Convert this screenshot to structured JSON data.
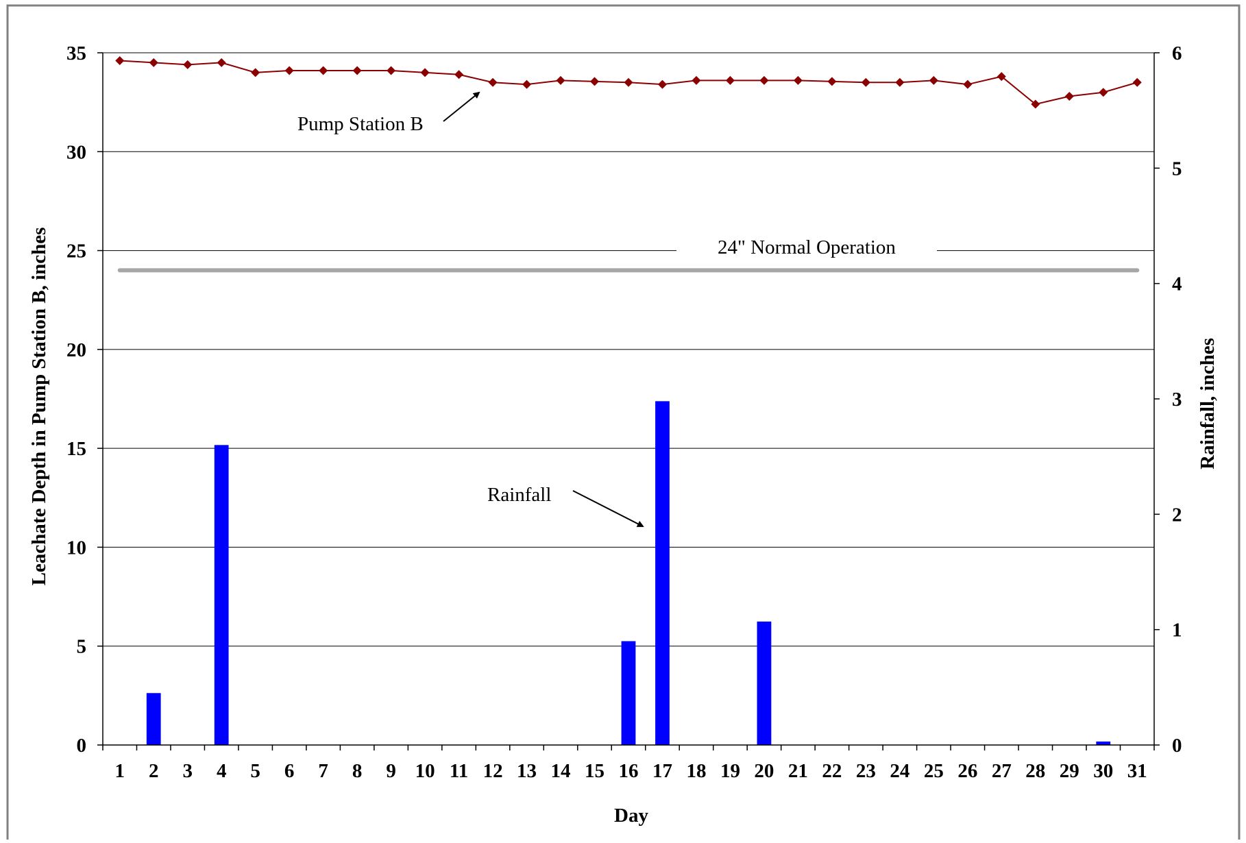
{
  "chart_data": {
    "type": "bar",
    "xlabel": "Day",
    "ylabel": "Leachate Depth in Pump Station B, inches",
    "y2label": "Rainfall, inches",
    "ylim": [
      0,
      35
    ],
    "y2lim": [
      0,
      6
    ],
    "yticks": [
      "0",
      "5",
      "10",
      "15",
      "20",
      "25",
      "30",
      "35"
    ],
    "y2ticks": [
      "0",
      "1",
      "2",
      "3",
      "4",
      "5",
      "6"
    ],
    "categories": [
      "1",
      "2",
      "3",
      "4",
      "5",
      "6",
      "7",
      "8",
      "9",
      "10",
      "11",
      "12",
      "13",
      "14",
      "15",
      "16",
      "17",
      "18",
      "19",
      "20",
      "21",
      "22",
      "23",
      "24",
      "25",
      "26",
      "27",
      "28",
      "29",
      "30",
      "31"
    ],
    "grid": true,
    "series": [
      {
        "name": "Pump Station B",
        "type": "line",
        "axis": "left",
        "color": "#8B0000",
        "values": [
          34.6,
          34.5,
          34.4,
          34.5,
          34.0,
          34.1,
          34.1,
          34.1,
          34.1,
          34.0,
          33.9,
          33.5,
          33.4,
          33.6,
          33.55,
          33.5,
          33.4,
          33.6,
          33.6,
          33.6,
          33.6,
          33.55,
          33.5,
          33.5,
          33.6,
          33.4,
          33.8,
          32.4,
          32.8,
          33.0,
          33.5
        ]
      },
      {
        "name": "Rainfall",
        "type": "bar",
        "axis": "right",
        "color": "#0000FF",
        "values": [
          0,
          0.45,
          0,
          2.6,
          0,
          0,
          0,
          0,
          0,
          0,
          0,
          0,
          0,
          0,
          0,
          0.9,
          2.98,
          0,
          0,
          1.07,
          0,
          0,
          0,
          0,
          0,
          0,
          0,
          0,
          0,
          0.03,
          0
        ]
      }
    ],
    "reference_line": {
      "label": "24\" Normal Operation",
      "value": 24,
      "color": "#A6A6A6"
    },
    "annotations": [
      "Pump Station B",
      "Rainfall"
    ]
  }
}
